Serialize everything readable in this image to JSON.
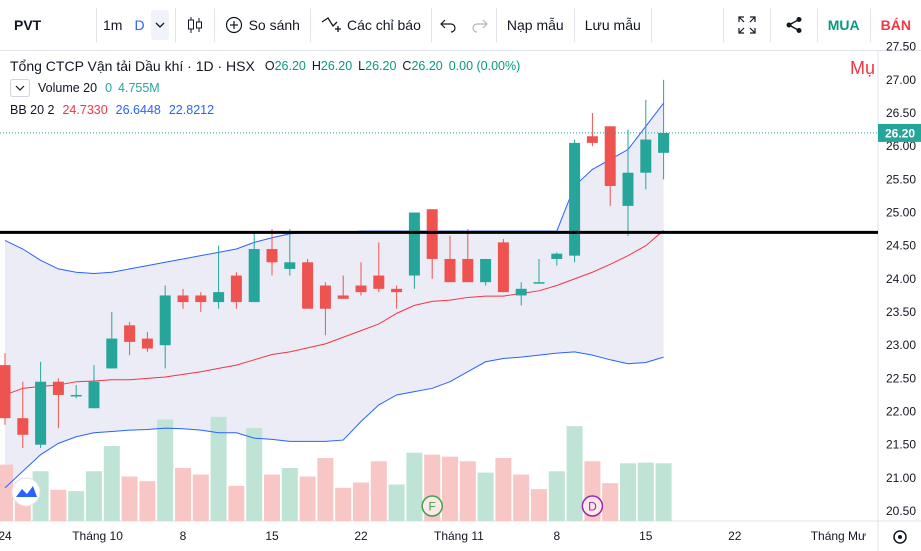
{
  "toolbar": {
    "symbol": "PVT",
    "interval_1m": "1m",
    "interval_d": "D",
    "compare_label": "So sánh",
    "indicators_label": "Các chỉ báo",
    "load_template": "Nạp mẫu",
    "save_template": "Lưu mẫu",
    "buy_label": "MUA",
    "sell_label": "BÁN"
  },
  "legend": {
    "title": "Tổng CTCP Vận tải Dầu khí · 1D · HSX",
    "o_label": "O",
    "o_val": "26.20",
    "h_label": "H",
    "h_val": "26.20",
    "l_label": "L",
    "l_val": "26.20",
    "c_label": "C",
    "c_val": "26.20",
    "change": "0.00 (0.00%)",
    "volume_label": "Volume 20",
    "volume_v1": "0",
    "volume_v2": "4.755M",
    "bb_label": "BB 20 2",
    "bb_basis": "24.7330",
    "bb_upper": "26.6448",
    "bb_lower": "22.8212",
    "watermark": "Mụ"
  },
  "colors": {
    "up": "#26a69a",
    "down": "#ef5350",
    "vol_up": "#bfe3d4",
    "vol_down": "#f7c6c5",
    "bb_band": "#2962ff",
    "bb_basis": "#f23645",
    "bb_fill": "#e5e6f3",
    "hline": "#000000",
    "price_label_bg": "#26a69a"
  },
  "chart_data": {
    "type": "candlestick",
    "symbol": "PVT",
    "interval": "1D",
    "ylim": [
      20.35,
      27.45
    ],
    "y_ticks": [
      20.5,
      21.0,
      21.5,
      22.0,
      22.5,
      23.0,
      23.5,
      24.0,
      24.5,
      25.0,
      25.5,
      26.0,
      26.5,
      27.0,
      27.5
    ],
    "x_ticks": [
      {
        "label": "24",
        "i": 0
      },
      {
        "label": "Tháng 10",
        "i": 5.2
      },
      {
        "label": "8",
        "i": 10
      },
      {
        "label": "15",
        "i": 15
      },
      {
        "label": "22",
        "i": 20
      },
      {
        "label": "Tháng 11",
        "i": 25.5
      },
      {
        "label": "8",
        "i": 31
      },
      {
        "label": "15",
        "i": 36
      },
      {
        "label": "22",
        "i": 41
      },
      {
        "label": "Tháng Mư",
        "i": 46.5
      }
    ],
    "last_price": "26.20",
    "last_price_value": 26.2,
    "horizontal_line": 24.7,
    "candles": [
      {
        "o": 22.7,
        "h": 22.88,
        "l": 21.8,
        "c": 21.9
      },
      {
        "o": 21.9,
        "h": 22.45,
        "l": 21.45,
        "c": 21.65
      },
      {
        "o": 21.5,
        "h": 22.75,
        "l": 21.45,
        "c": 22.45
      },
      {
        "o": 22.45,
        "h": 22.5,
        "l": 21.75,
        "c": 22.25
      },
      {
        "o": 22.25,
        "h": 22.4,
        "l": 22.2,
        "c": 22.25
      },
      {
        "o": 22.05,
        "h": 22.7,
        "l": 22.05,
        "c": 22.45
      },
      {
        "o": 22.65,
        "h": 23.5,
        "l": 22.65,
        "c": 23.1
      },
      {
        "o": 23.3,
        "h": 23.35,
        "l": 22.85,
        "c": 23.05
      },
      {
        "o": 23.1,
        "h": 23.2,
        "l": 22.9,
        "c": 22.95
      },
      {
        "o": 23.0,
        "h": 23.9,
        "l": 22.65,
        "c": 23.75
      },
      {
        "o": 23.75,
        "h": 23.85,
        "l": 23.55,
        "c": 23.65
      },
      {
        "o": 23.75,
        "h": 23.8,
        "l": 23.5,
        "c": 23.65
      },
      {
        "o": 23.65,
        "h": 24.5,
        "l": 23.55,
        "c": 23.8
      },
      {
        "o": 24.05,
        "h": 24.1,
        "l": 23.55,
        "c": 23.65
      },
      {
        "o": 23.65,
        "h": 24.7,
        "l": 23.65,
        "c": 24.45
      },
      {
        "o": 24.45,
        "h": 24.75,
        "l": 24.05,
        "c": 24.25
      },
      {
        "o": 24.15,
        "h": 24.75,
        "l": 24.05,
        "c": 24.25
      },
      {
        "o": 24.25,
        "h": 24.3,
        "l": 23.55,
        "c": 23.55
      },
      {
        "o": 23.9,
        "h": 23.95,
        "l": 23.15,
        "c": 23.55
      },
      {
        "o": 23.75,
        "h": 24.05,
        "l": 23.7,
        "c": 23.7
      },
      {
        "o": 23.9,
        "h": 24.25,
        "l": 23.75,
        "c": 23.8
      },
      {
        "o": 24.05,
        "h": 24.55,
        "l": 23.8,
        "c": 23.85
      },
      {
        "o": 23.85,
        "h": 23.9,
        "l": 23.55,
        "c": 23.8
      },
      {
        "o": 24.05,
        "h": 25.0,
        "l": 23.85,
        "c": 25.0
      },
      {
        "o": 25.05,
        "h": 25.05,
        "l": 24.0,
        "c": 24.3
      },
      {
        "o": 24.3,
        "h": 24.65,
        "l": 23.95,
        "c": 23.95
      },
      {
        "o": 24.3,
        "h": 24.75,
        "l": 23.95,
        "c": 23.95
      },
      {
        "o": 23.95,
        "h": 24.3,
        "l": 23.9,
        "c": 24.3
      },
      {
        "o": 24.55,
        "h": 24.6,
        "l": 23.8,
        "c": 23.8
      },
      {
        "o": 23.75,
        "h": 23.95,
        "l": 23.6,
        "c": 23.85
      },
      {
        "o": 23.95,
        "h": 24.3,
        "l": 23.95,
        "c": 23.95
      },
      {
        "o": 24.3,
        "h": 24.4,
        "l": 24.2,
        "c": 24.38
      },
      {
        "o": 24.35,
        "h": 26.1,
        "l": 24.25,
        "c": 26.05
      },
      {
        "o": 26.15,
        "h": 26.5,
        "l": 26.0,
        "c": 26.05
      },
      {
        "o": 26.3,
        "h": 26.3,
        "l": 25.1,
        "c": 25.4
      },
      {
        "o": 25.1,
        "h": 26.25,
        "l": 24.65,
        "c": 25.6
      },
      {
        "o": 25.6,
        "h": 26.7,
        "l": 25.35,
        "c": 26.1
      },
      {
        "o": 25.9,
        "h": 27.0,
        "l": 25.5,
        "c": 26.2
      }
    ],
    "volumes": [
      {
        "v": 21.2,
        "up": false
      },
      {
        "v": 20.85,
        "up": false
      },
      {
        "v": 21.1,
        "up": true
      },
      {
        "v": 20.82,
        "up": false
      },
      {
        "v": 20.8,
        "up": true
      },
      {
        "v": 21.1,
        "up": true
      },
      {
        "v": 21.48,
        "up": true
      },
      {
        "v": 21.02,
        "up": false
      },
      {
        "v": 20.95,
        "up": false
      },
      {
        "v": 21.88,
        "up": true
      },
      {
        "v": 21.15,
        "up": false
      },
      {
        "v": 21.05,
        "up": false
      },
      {
        "v": 21.92,
        "up": true
      },
      {
        "v": 20.88,
        "up": false
      },
      {
        "v": 21.75,
        "up": true
      },
      {
        "v": 21.05,
        "up": false
      },
      {
        "v": 21.15,
        "up": true
      },
      {
        "v": 21.02,
        "up": false
      },
      {
        "v": 21.3,
        "up": false
      },
      {
        "v": 20.85,
        "up": false
      },
      {
        "v": 20.93,
        "up": false
      },
      {
        "v": 21.25,
        "up": false
      },
      {
        "v": 20.9,
        "up": true
      },
      {
        "v": 21.38,
        "up": true
      },
      {
        "v": 21.35,
        "up": false
      },
      {
        "v": 21.32,
        "up": false
      },
      {
        "v": 21.25,
        "up": false
      },
      {
        "v": 21.08,
        "up": true
      },
      {
        "v": 21.3,
        "up": false
      },
      {
        "v": 21.05,
        "up": false
      },
      {
        "v": 20.83,
        "up": false
      },
      {
        "v": 21.1,
        "up": true
      },
      {
        "v": 21.78,
        "up": true
      },
      {
        "v": 21.25,
        "up": false
      },
      {
        "v": 20.92,
        "up": false
      },
      {
        "v": 21.22,
        "up": true
      },
      {
        "v": 21.23,
        "up": true
      },
      {
        "v": 21.22,
        "up": true
      }
    ],
    "bb_upper": [
      24.58,
      24.45,
      24.28,
      24.15,
      24.1,
      24.08,
      24.1,
      24.15,
      24.2,
      24.25,
      24.3,
      24.35,
      24.4,
      24.45,
      24.55,
      24.62,
      24.68,
      24.7,
      24.7,
      24.7,
      24.72,
      24.72,
      24.72,
      24.72,
      24.72,
      24.72,
      24.72,
      24.72,
      24.72,
      24.72,
      24.72,
      24.72,
      25.4,
      25.65,
      25.8,
      25.95,
      26.3,
      26.65
    ],
    "bb_basis": [
      22.25,
      22.35,
      22.38,
      22.4,
      22.45,
      22.46,
      22.48,
      22.48,
      22.5,
      22.52,
      22.56,
      22.6,
      22.65,
      22.7,
      22.78,
      22.86,
      22.9,
      22.96,
      23.02,
      23.12,
      23.22,
      23.32,
      23.48,
      23.6,
      23.66,
      23.68,
      23.72,
      23.74,
      23.74,
      23.78,
      23.82,
      23.9,
      24.0,
      24.1,
      24.22,
      24.35,
      24.5,
      24.73
    ],
    "bb_lower": [
      20.85,
      21.1,
      21.35,
      21.52,
      21.62,
      21.68,
      21.7,
      21.72,
      21.73,
      21.75,
      21.74,
      21.72,
      21.68,
      21.68,
      21.6,
      21.58,
      21.55,
      21.55,
      21.55,
      21.57,
      21.85,
      22.1,
      22.25,
      22.3,
      22.35,
      22.45,
      22.6,
      22.75,
      22.8,
      22.82,
      22.85,
      22.88,
      22.9,
      22.85,
      22.78,
      22.72,
      22.74,
      22.82
    ],
    "markers": [
      {
        "label": "F",
        "i": 24,
        "color": "#43a047"
      },
      {
        "label": "D",
        "i": 33,
        "color": "#9c27b0"
      }
    ]
  }
}
